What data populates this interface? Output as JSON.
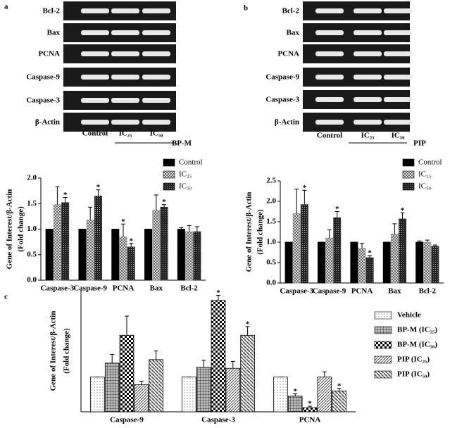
{
  "panel_labels": [
    "a",
    "b",
    "c"
  ],
  "gels": [
    {
      "rows": [
        "Bcl-2",
        "Bax",
        "PCNA",
        "Caspase-9",
        "Caspase-3",
        "β-Actin"
      ],
      "lanes": [
        "Control",
        "IC₂₅",
        "IC₅₀"
      ],
      "group": "BP-M"
    },
    {
      "rows": [
        "Bcl-2",
        "Bax",
        "PCNA",
        "Caspase-9",
        "Caspase-3",
        "β-Actin"
      ],
      "lanes": [
        "Control",
        "IC₂₅",
        "IC₅₀"
      ],
      "group": "PIP"
    }
  ],
  "chart_data": [
    {
      "type": "bar",
      "y_label": [
        "Gene of Interest/β-Actin",
        "(Fold change)"
      ],
      "categories": [
        "Caspase-3",
        "Caspase-9",
        "PCNA",
        "Bax",
        "Bcl-2"
      ],
      "series": [
        {
          "name": "Control",
          "color": "#000000",
          "pattern": "solid",
          "values": [
            1,
            1,
            1,
            1,
            1
          ],
          "errors": [
            0,
            0,
            0,
            0,
            0.03
          ],
          "significance": [
            null,
            null,
            null,
            null,
            null
          ]
        },
        {
          "name": "IC₂₅",
          "color": "#999999",
          "pattern": "checker",
          "values": [
            1.48,
            1.18,
            0.85,
            1.37,
            0.95
          ],
          "errors": [
            0.35,
            0.25,
            0.25,
            0.3,
            0.12
          ],
          "significance": [
            null,
            null,
            "*",
            null,
            null
          ]
        },
        {
          "name": "IC₅₀",
          "color": "#333333",
          "pattern": "dots",
          "values": [
            1.52,
            1.65,
            0.65,
            1.43,
            0.95
          ],
          "errors": [
            0.1,
            0.12,
            0.07,
            0.05,
            0.1
          ],
          "significance": [
            "*",
            "*",
            "*",
            "*",
            null
          ]
        }
      ],
      "ylim": [
        0,
        2
      ],
      "yticks": [
        {
          "value": 0,
          "label": "0.0"
        },
        0.5,
        {
          "value": 1,
          "label": "1.0"
        },
        1.5,
        {
          "value": 2,
          "label": "2.0"
        }
      ]
    },
    {
      "type": "bar",
      "y_label": [
        "Gene of Interest/β-Actin",
        "(Fold change)"
      ],
      "categories": [
        "Caspase-3",
        "Caspase-9",
        "PCNA",
        "Bax",
        "Bcl-2"
      ],
      "series": [
        {
          "name": "Control",
          "color": "#000000",
          "pattern": "solid",
          "values": [
            1,
            1,
            1,
            1,
            1
          ],
          "errors": [
            0,
            0,
            0,
            0,
            0.03
          ],
          "significance": [
            null,
            null,
            null,
            null,
            null
          ]
        },
        {
          "name": "IC₂₅",
          "color": "#999999",
          "pattern": "checker",
          "values": [
            1.7,
            1.1,
            0.85,
            1.2,
            1.0
          ],
          "errors": [
            0.6,
            0.2,
            0.12,
            0.25,
            0.05
          ],
          "significance": [
            null,
            null,
            null,
            null,
            null
          ]
        },
        {
          "name": "IC₅₀",
          "color": "#333333",
          "pattern": "dots",
          "values": [
            1.92,
            1.6,
            0.62,
            1.57,
            0.9
          ],
          "errors": [
            0.35,
            0.15,
            0.05,
            0.15,
            0.03
          ],
          "significance": [
            "*",
            "*",
            "*",
            "*",
            null
          ]
        }
      ],
      "ylim": [
        0,
        2.5
      ],
      "yticks": [
        {
          "value": 0,
          "label": "0.0"
        },
        0.5,
        {
          "value": 1,
          "label": "1.0"
        },
        1.5,
        {
          "value": 2,
          "label": "2.0"
        },
        2.5
      ]
    },
    {
      "type": "bar",
      "y_label": [
        "Gene of Interest/β-Actin",
        "(Fold change)"
      ],
      "categories": [
        "Caspase-9",
        "Caspase-3",
        "PCNA"
      ],
      "series": [
        {
          "name": "Vehicle",
          "color": "#ffffff",
          "pattern": "fine-dots",
          "values": [
            1,
            1,
            1
          ],
          "errors": [
            0,
            0,
            0
          ],
          "significance": [
            null,
            null,
            null
          ]
        },
        {
          "name": "BP-M (IC₂₅)",
          "color": "#666666",
          "pattern": "grid",
          "values": [
            1.4,
            1.28,
            0.45
          ],
          "errors": [
            0.25,
            0.2,
            0.07
          ],
          "significance": [
            null,
            null,
            "*"
          ]
        },
        {
          "name": "BP-M (IC₅₀)",
          "color": "#000000",
          "pattern": "checker-big",
          "values": [
            2.2,
            3.2,
            0.12
          ],
          "errors": [
            0.55,
            0.15,
            0.04
          ],
          "significance": [
            null,
            "*",
            "*"
          ]
        },
        {
          "name": "PIP (IC₂₅)",
          "color": "#555555",
          "pattern": "diag",
          "values": [
            0.78,
            1.25,
            1.0
          ],
          "errors": [
            0.1,
            0.2,
            0.15
          ],
          "significance": [
            null,
            null,
            null
          ]
        },
        {
          "name": "PIP (IC₅₀)",
          "color": "#555555",
          "pattern": "diag2",
          "values": [
            1.5,
            2.2,
            0.6
          ],
          "errors": [
            0.25,
            0.25,
            0.07
          ],
          "significance": [
            null,
            "*",
            "*"
          ]
        }
      ],
      "ylim": [
        0,
        3.5
      ]
    }
  ]
}
